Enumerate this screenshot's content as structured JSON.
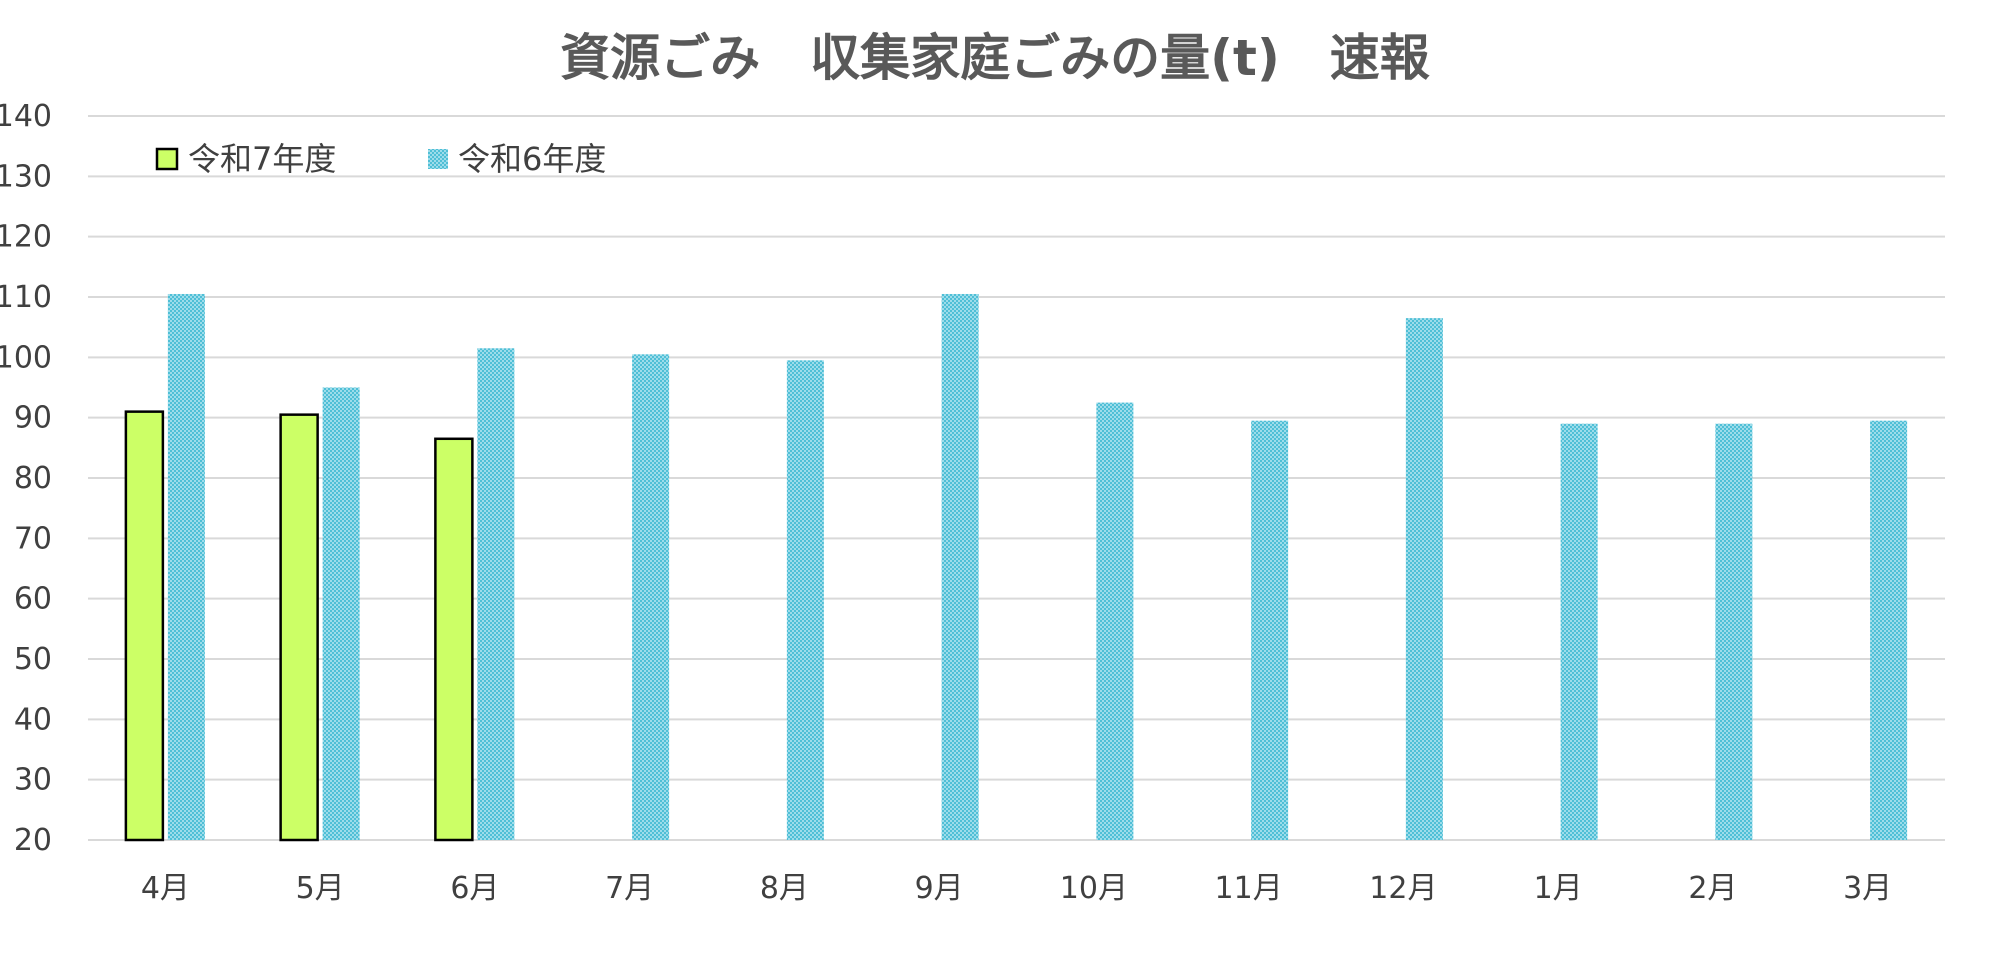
{
  "chart_data": {
    "type": "bar",
    "title": "資源ごみ　収集家庭ごみの量(t)　速報",
    "xlabel": "",
    "ylabel": "",
    "ylim": [
      20,
      140
    ],
    "yticks": [
      20,
      30,
      40,
      50,
      60,
      70,
      80,
      90,
      100,
      110,
      120,
      130,
      140
    ],
    "grid": true,
    "legend_position": "top-left",
    "categories": [
      "4月",
      "5月",
      "6月",
      "7月",
      "8月",
      "9月",
      "10月",
      "11月",
      "12月",
      "1月",
      "2月",
      "3月"
    ],
    "series": [
      {
        "name": "令和7年度",
        "color": "#ccff66",
        "values": [
          91,
          90.5,
          86.5,
          null,
          null,
          null,
          null,
          null,
          null,
          null,
          null,
          null
        ]
      },
      {
        "name": "令和6年度",
        "color": "#7dd0e0",
        "values": [
          110.5,
          95,
          101.5,
          100.5,
          99.5,
          110.5,
          92.5,
          89.5,
          106.5,
          89,
          89,
          89.5
        ]
      }
    ]
  }
}
